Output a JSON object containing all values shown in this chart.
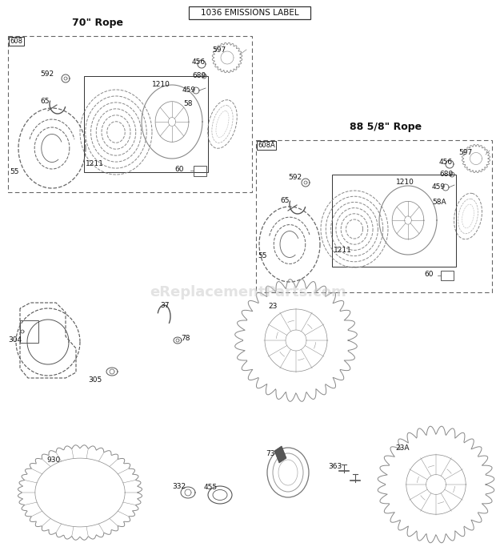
{
  "title": "1036 EMISSIONS LABEL",
  "watermark": "eReplacementParts.com",
  "bg_color": "#ffffff",
  "line_color": "#555555",
  "text_color": "#111111",
  "box1_title": "70\" Rope",
  "box1_label": "608",
  "box2_title": "88 5/8\" Rope",
  "box2_label": "608A"
}
